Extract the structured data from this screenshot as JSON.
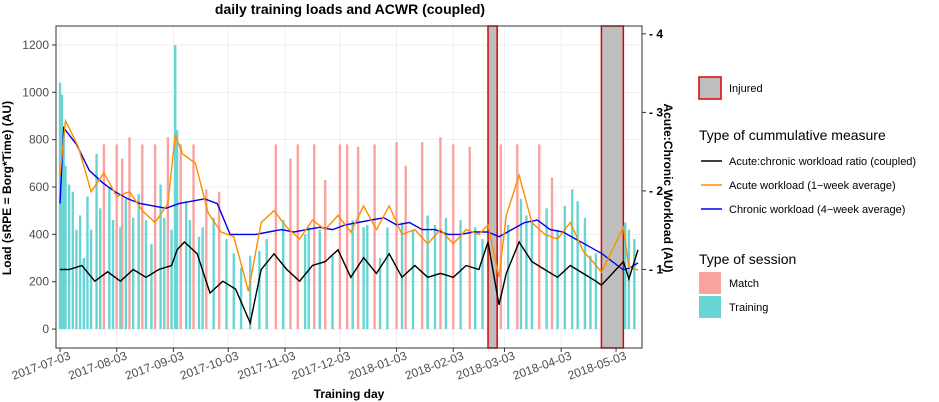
{
  "chart_data": {
    "type": "bar+line",
    "title": "daily training loads and ACWR (coupled)",
    "xlabel": "Training day",
    "ylabel_left": "Load (sRPE = Borg*Time) (AU)",
    "ylabel_right": "Acute:Chronic Workload (AU)",
    "x_range": [
      "2017-07-03",
      "2018-05-15"
    ],
    "y_left_range": [
      -80,
      1280
    ],
    "y_right_range": [
      0,
      4.1
    ],
    "x_ticks": [
      "2017-07-03",
      "2017-08-03",
      "2017-09-03",
      "2017-10-03",
      "2017-11-03",
      "2017-12-03",
      "2018-01-03",
      "2018-02-03",
      "2018-03-03",
      "2018-04-03",
      "2018-05-03"
    ],
    "y_left_ticks": [
      "0",
      "200",
      "400",
      "600",
      "800",
      "1000",
      "1200"
    ],
    "y_right_ticks": [
      "1",
      "2",
      "3",
      "4"
    ],
    "grid": true,
    "legend_position": "right",
    "legend": {
      "injured_title": "",
      "injured_label": "Injured",
      "measure_title": "Type of cummulative measure",
      "measure_items": [
        {
          "label": "Acute:chronic workload ratio (coupled)",
          "color": "#000000"
        },
        {
          "label": "Acute workload (1−week average)",
          "color": "#ff8c00"
        },
        {
          "label": "Chronic workload (4−week average)",
          "color": "#0000ee"
        }
      ],
      "session_title": "Type of session",
      "session_items": [
        {
          "label": "Match",
          "color": "#f8a3a0"
        },
        {
          "label": "Training",
          "color": "#68d4d4"
        }
      ]
    },
    "injured_periods": [
      {
        "start": "2018-02-22",
        "end": "2018-02-27"
      },
      {
        "start": "2018-04-25",
        "end": "2018-05-07"
      }
    ],
    "colors": {
      "match": "#f8a3a0",
      "training": "#68d4d4",
      "injured_fill": "#bebebe",
      "injured_border": "#e00000",
      "acwr": "#000000",
      "acute": "#ff8c00",
      "chronic": "#0000ee"
    },
    "match_bars": [
      {
        "date": "2017-07-27",
        "value": 780
      },
      {
        "date": "2017-08-03",
        "value": 780
      },
      {
        "date": "2017-08-06",
        "value": 720
      },
      {
        "date": "2017-08-10",
        "value": 810
      },
      {
        "date": "2017-08-17",
        "value": 780
      },
      {
        "date": "2017-08-24",
        "value": 780
      },
      {
        "date": "2017-08-31",
        "value": 810
      },
      {
        "date": "2017-09-07",
        "value": 780
      },
      {
        "date": "2017-09-14",
        "value": 780
      },
      {
        "date": "2017-09-21",
        "value": 590
      },
      {
        "date": "2017-09-28",
        "value": 580
      },
      {
        "date": "2017-10-29",
        "value": 780
      },
      {
        "date": "2017-11-06",
        "value": 720
      },
      {
        "date": "2017-11-10",
        "value": 780
      },
      {
        "date": "2017-11-19",
        "value": 780
      },
      {
        "date": "2017-11-25",
        "value": 630
      },
      {
        "date": "2017-12-03",
        "value": 780
      },
      {
        "date": "2017-12-07",
        "value": 780
      },
      {
        "date": "2017-12-13",
        "value": 770
      },
      {
        "date": "2017-12-22",
        "value": 780
      },
      {
        "date": "2018-01-03",
        "value": 790
      },
      {
        "date": "2018-01-08",
        "value": 690
      },
      {
        "date": "2018-01-17",
        "value": 790
      },
      {
        "date": "2018-01-27",
        "value": 810
      },
      {
        "date": "2018-02-03",
        "value": 780
      },
      {
        "date": "2018-02-12",
        "value": 770
      },
      {
        "date": "2018-03-01",
        "value": 780
      },
      {
        "date": "2018-03-10",
        "value": 780
      },
      {
        "date": "2018-03-22",
        "value": 780
      },
      {
        "date": "2018-03-29",
        "value": 640
      }
    ],
    "training_bars": [
      {
        "date": "2017-07-03",
        "value": 1040
      },
      {
        "date": "2017-07-04",
        "value": 990
      },
      {
        "date": "2017-07-05",
        "value": 850
      },
      {
        "date": "2017-07-06",
        "value": 690
      },
      {
        "date": "2017-07-08",
        "value": 610
      },
      {
        "date": "2017-07-10",
        "value": 580
      },
      {
        "date": "2017-07-12",
        "value": 420
      },
      {
        "date": "2017-07-14",
        "value": 480
      },
      {
        "date": "2017-07-16",
        "value": 300
      },
      {
        "date": "2017-07-18",
        "value": 560
      },
      {
        "date": "2017-07-20",
        "value": 420
      },
      {
        "date": "2017-07-23",
        "value": 740
      },
      {
        "date": "2017-07-25",
        "value": 510
      },
      {
        "date": "2017-07-30",
        "value": 600
      },
      {
        "date": "2017-08-01",
        "value": 460
      },
      {
        "date": "2017-08-05",
        "value": 430
      },
      {
        "date": "2017-08-08",
        "value": 550
      },
      {
        "date": "2017-08-12",
        "value": 470
      },
      {
        "date": "2017-08-15",
        "value": 570
      },
      {
        "date": "2017-08-19",
        "value": 460
      },
      {
        "date": "2017-08-22",
        "value": 360
      },
      {
        "date": "2017-08-27",
        "value": 610
      },
      {
        "date": "2017-08-29",
        "value": 470
      },
      {
        "date": "2017-09-02",
        "value": 420
      },
      {
        "date": "2017-09-04",
        "value": 1200
      },
      {
        "date": "2017-09-05",
        "value": 840
      },
      {
        "date": "2017-09-10",
        "value": 540
      },
      {
        "date": "2017-09-12",
        "value": 460
      },
      {
        "date": "2017-09-17",
        "value": 390
      },
      {
        "date": "2017-09-19",
        "value": 430
      },
      {
        "date": "2017-09-25",
        "value": 470
      },
      {
        "date": "2017-10-02",
        "value": 380
      },
      {
        "date": "2017-10-06",
        "value": 320
      },
      {
        "date": "2017-10-10",
        "value": 260
      },
      {
        "date": "2017-10-15",
        "value": 310
      },
      {
        "date": "2017-10-20",
        "value": 330
      },
      {
        "date": "2017-10-24",
        "value": 380
      },
      {
        "date": "2017-11-02",
        "value": 460
      },
      {
        "date": "2017-11-14",
        "value": 400
      },
      {
        "date": "2017-11-16",
        "value": 430
      },
      {
        "date": "2017-11-22",
        "value": 420
      },
      {
        "date": "2017-11-29",
        "value": 310
      },
      {
        "date": "2017-12-10",
        "value": 460
      },
      {
        "date": "2017-12-16",
        "value": 430
      },
      {
        "date": "2017-12-18",
        "value": 440
      },
      {
        "date": "2017-12-25",
        "value": 300
      },
      {
        "date": "2017-12-29",
        "value": 430
      },
      {
        "date": "2018-01-06",
        "value": 450
      },
      {
        "date": "2018-01-12",
        "value": 420
      },
      {
        "date": "2018-01-20",
        "value": 480
      },
      {
        "date": "2018-01-24",
        "value": 440
      },
      {
        "date": "2018-01-30",
        "value": 470
      },
      {
        "date": "2018-02-07",
        "value": 460
      },
      {
        "date": "2018-02-15",
        "value": 430
      },
      {
        "date": "2018-02-19",
        "value": 380
      },
      {
        "date": "2018-03-05",
        "value": 440
      },
      {
        "date": "2018-03-12",
        "value": 550
      },
      {
        "date": "2018-03-15",
        "value": 480
      },
      {
        "date": "2018-03-18",
        "value": 460
      },
      {
        "date": "2018-03-26",
        "value": 510
      },
      {
        "date": "2018-04-01",
        "value": 420
      },
      {
        "date": "2018-04-05",
        "value": 520
      },
      {
        "date": "2018-04-09",
        "value": 590
      },
      {
        "date": "2018-04-12",
        "value": 540
      },
      {
        "date": "2018-04-16",
        "value": 470
      },
      {
        "date": "2018-04-19",
        "value": 310
      },
      {
        "date": "2018-04-22",
        "value": 320
      },
      {
        "date": "2018-05-08",
        "value": 450
      },
      {
        "date": "2018-05-10",
        "value": 420
      },
      {
        "date": "2018-05-13",
        "value": 380
      }
    ],
    "acwr_series": [
      [
        "2017-07-03",
        1.0
      ],
      [
        "2017-07-08",
        1.0
      ],
      [
        "2017-07-15",
        1.05
      ],
      [
        "2017-07-22",
        0.85
      ],
      [
        "2017-07-29",
        0.97
      ],
      [
        "2017-08-05",
        0.85
      ],
      [
        "2017-08-12",
        1.0
      ],
      [
        "2017-08-19",
        0.9
      ],
      [
        "2017-08-26",
        1.0
      ],
      [
        "2017-09-02",
        1.05
      ],
      [
        "2017-09-05",
        1.25
      ],
      [
        "2017-09-09",
        1.35
      ],
      [
        "2017-09-16",
        1.2
      ],
      [
        "2017-09-23",
        0.7
      ],
      [
        "2017-09-30",
        0.85
      ],
      [
        "2017-10-07",
        0.75
      ],
      [
        "2017-10-15",
        0.32
      ],
      [
        "2017-10-21",
        1.0
      ],
      [
        "2017-10-28",
        1.2
      ],
      [
        "2017-11-04",
        1.0
      ],
      [
        "2017-11-11",
        0.85
      ],
      [
        "2017-11-18",
        1.05
      ],
      [
        "2017-11-25",
        1.1
      ],
      [
        "2017-12-02",
        1.25
      ],
      [
        "2017-12-09",
        0.9
      ],
      [
        "2017-12-16",
        1.15
      ],
      [
        "2017-12-23",
        0.95
      ],
      [
        "2017-12-30",
        1.2
      ],
      [
        "2018-01-06",
        0.9
      ],
      [
        "2018-01-13",
        1.05
      ],
      [
        "2018-01-20",
        0.9
      ],
      [
        "2018-01-27",
        0.95
      ],
      [
        "2018-02-03",
        0.9
      ],
      [
        "2018-02-10",
        1.05
      ],
      [
        "2018-02-17",
        1.0
      ],
      [
        "2018-02-22",
        1.35
      ],
      [
        "2018-02-28",
        0.55
      ],
      [
        "2018-03-04",
        0.95
      ],
      [
        "2018-03-11",
        1.35
      ],
      [
        "2018-03-18",
        1.1
      ],
      [
        "2018-03-25",
        1.0
      ],
      [
        "2018-04-01",
        0.9
      ],
      [
        "2018-04-08",
        1.05
      ],
      [
        "2018-04-15",
        0.95
      ],
      [
        "2018-04-22",
        0.85
      ],
      [
        "2018-04-25",
        0.8
      ],
      [
        "2018-05-07",
        1.1
      ],
      [
        "2018-05-10",
        0.88
      ],
      [
        "2018-05-15",
        1.25
      ]
    ],
    "acute_series": [
      [
        "2017-07-03",
        650
      ],
      [
        "2017-07-06",
        880
      ],
      [
        "2017-07-13",
        770
      ],
      [
        "2017-07-20",
        580
      ],
      [
        "2017-07-27",
        660
      ],
      [
        "2017-08-03",
        560
      ],
      [
        "2017-08-10",
        580
      ],
      [
        "2017-08-17",
        500
      ],
      [
        "2017-08-24",
        450
      ],
      [
        "2017-08-31",
        530
      ],
      [
        "2017-09-04",
        820
      ],
      [
        "2017-09-08",
        740
      ],
      [
        "2017-09-15",
        700
      ],
      [
        "2017-09-22",
        490
      ],
      [
        "2017-09-29",
        410
      ],
      [
        "2017-10-06",
        390
      ],
      [
        "2017-10-14",
        160
      ],
      [
        "2017-10-21",
        450
      ],
      [
        "2017-10-28",
        500
      ],
      [
        "2017-11-04",
        430
      ],
      [
        "2017-11-11",
        380
      ],
      [
        "2017-11-18",
        460
      ],
      [
        "2017-11-25",
        420
      ],
      [
        "2017-12-02",
        480
      ],
      [
        "2017-12-09",
        410
      ],
      [
        "2017-12-16",
        520
      ],
      [
        "2017-12-23",
        420
      ],
      [
        "2017-12-30",
        520
      ],
      [
        "2018-01-06",
        400
      ],
      [
        "2018-01-13",
        420
      ],
      [
        "2018-01-20",
        360
      ],
      [
        "2018-01-27",
        420
      ],
      [
        "2018-02-03",
        360
      ],
      [
        "2018-02-10",
        420
      ],
      [
        "2018-02-17",
        400
      ],
      [
        "2018-02-22",
        440
      ],
      [
        "2018-02-28",
        220
      ],
      [
        "2018-03-04",
        480
      ],
      [
        "2018-03-11",
        650
      ],
      [
        "2018-03-18",
        450
      ],
      [
        "2018-03-25",
        400
      ],
      [
        "2018-04-01",
        380
      ],
      [
        "2018-04-08",
        450
      ],
      [
        "2018-04-15",
        330
      ],
      [
        "2018-04-22",
        270
      ],
      [
        "2018-04-25",
        240
      ],
      [
        "2018-05-07",
        430
      ],
      [
        "2018-05-10",
        260
      ],
      [
        "2018-05-15",
        250
      ]
    ],
    "chronic_series": [
      [
        "2017-07-03",
        530
      ],
      [
        "2017-07-05",
        850
      ],
      [
        "2017-07-12",
        780
      ],
      [
        "2017-07-19",
        670
      ],
      [
        "2017-07-26",
        620
      ],
      [
        "2017-08-02",
        580
      ],
      [
        "2017-08-09",
        550
      ],
      [
        "2017-08-16",
        530
      ],
      [
        "2017-08-23",
        520
      ],
      [
        "2017-08-30",
        510
      ],
      [
        "2017-09-06",
        530
      ],
      [
        "2017-09-13",
        540
      ],
      [
        "2017-09-20",
        550
      ],
      [
        "2017-09-27",
        530
      ],
      [
        "2017-10-04",
        400
      ],
      [
        "2017-10-11",
        400
      ],
      [
        "2017-10-18",
        400
      ],
      [
        "2017-10-25",
        410
      ],
      [
        "2017-11-01",
        420
      ],
      [
        "2017-11-08",
        410
      ],
      [
        "2017-11-15",
        420
      ],
      [
        "2017-11-22",
        430
      ],
      [
        "2017-11-29",
        420
      ],
      [
        "2017-12-06",
        440
      ],
      [
        "2017-12-13",
        450
      ],
      [
        "2017-12-20",
        460
      ],
      [
        "2017-12-27",
        470
      ],
      [
        "2018-01-03",
        440
      ],
      [
        "2018-01-10",
        450
      ],
      [
        "2018-01-17",
        420
      ],
      [
        "2018-01-24",
        420
      ],
      [
        "2018-01-31",
        400
      ],
      [
        "2018-02-07",
        400
      ],
      [
        "2018-02-14",
        410
      ],
      [
        "2018-02-22",
        410
      ],
      [
        "2018-02-28",
        390
      ],
      [
        "2018-03-07",
        420
      ],
      [
        "2018-03-14",
        450
      ],
      [
        "2018-03-21",
        460
      ],
      [
        "2018-03-28",
        420
      ],
      [
        "2018-04-04",
        410
      ],
      [
        "2018-04-11",
        380
      ],
      [
        "2018-04-18",
        350
      ],
      [
        "2018-04-25",
        320
      ],
      [
        "2018-05-07",
        250
      ],
      [
        "2018-05-11",
        260
      ],
      [
        "2018-05-15",
        280
      ]
    ]
  }
}
